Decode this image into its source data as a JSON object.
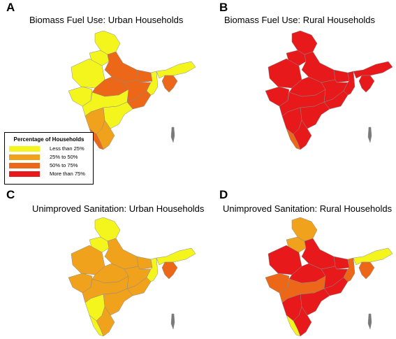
{
  "colors": {
    "less_than_25": "#f5f51e",
    "25_to_50": "#f0a21c",
    "50_to_75": "#ec6818",
    "more_than_75": "#e8191a",
    "islands": "#7a7a7a",
    "border": "#8a8a8a"
  },
  "legend": {
    "title": "Percentage of Households",
    "items": [
      {
        "key": "less_than_25",
        "label": "Less than 25%"
      },
      {
        "key": "25_to_50",
        "label": "25% to 50%"
      },
      {
        "key": "50_to_75",
        "label": "50% to 75%"
      },
      {
        "key": "more_than_75",
        "label": "More than 75%"
      }
    ]
  },
  "panels": [
    {
      "letter": "A",
      "title": "Biomass Fuel Use: Urban Households",
      "regions": {
        "kashmir": "less_than_25",
        "himachal_punjab": "less_than_25",
        "rajasthan": "less_than_25",
        "gujarat": "less_than_25",
        "up_north": "50_to_75",
        "bihar": "50_to_75",
        "madhya_pradesh": "50_to_75",
        "chhattisgarh_jharkhand": "50_to_75",
        "odisha": "50_to_75",
        "west_bengal": "less_than_25",
        "maharashtra": "less_than_25",
        "andhra": "less_than_25",
        "karnataka": "25_to_50",
        "tamil_nadu": "25_to_50",
        "kerala": "50_to_75",
        "assam": "less_than_25",
        "northeast_south": "50_to_75"
      }
    },
    {
      "letter": "B",
      "title": "Biomass Fuel Use: Rural Households",
      "regions": {
        "kashmir": "more_than_75",
        "himachal_punjab": "more_than_75",
        "rajasthan": "more_than_75",
        "gujarat": "more_than_75",
        "up_north": "more_than_75",
        "bihar": "more_than_75",
        "madhya_pradesh": "more_than_75",
        "chhattisgarh_jharkhand": "more_than_75",
        "odisha": "more_than_75",
        "west_bengal": "more_than_75",
        "maharashtra": "more_than_75",
        "andhra": "more_than_75",
        "karnataka": "more_than_75",
        "tamil_nadu": "more_than_75",
        "kerala": "50_to_75",
        "assam": "more_than_75",
        "northeast_south": "more_than_75"
      }
    },
    {
      "letter": "C",
      "title": "Unimproved Sanitation: Urban Households",
      "regions": {
        "kashmir": "less_than_25",
        "himachal_punjab": "less_than_25",
        "rajasthan": "25_to_50",
        "gujarat": "25_to_50",
        "up_north": "25_to_50",
        "bihar": "25_to_50",
        "madhya_pradesh": "25_to_50",
        "chhattisgarh_jharkhand": "25_to_50",
        "odisha": "25_to_50",
        "west_bengal": "less_than_25",
        "maharashtra": "25_to_50",
        "andhra": "25_to_50",
        "karnataka": "less_than_25",
        "tamil_nadu": "25_to_50",
        "kerala": "less_than_25",
        "assam": "less_than_25",
        "northeast_south": "50_to_75"
      }
    },
    {
      "letter": "D",
      "title": "Unimproved Sanitation: Rural Households",
      "regions": {
        "kashmir": "25_to_50",
        "himachal_punjab": "25_to_50",
        "rajasthan": "more_than_75",
        "gujarat": "50_to_75",
        "up_north": "more_than_75",
        "bihar": "more_than_75",
        "madhya_pradesh": "more_than_75",
        "chhattisgarh_jharkhand": "more_than_75",
        "odisha": "more_than_75",
        "west_bengal": "50_to_75",
        "maharashtra": "50_to_75",
        "andhra": "more_than_75",
        "karnataka": "more_than_75",
        "tamil_nadu": "more_than_75",
        "kerala": "less_than_25",
        "assam": "less_than_25",
        "northeast_south": "50_to_75"
      }
    }
  ]
}
